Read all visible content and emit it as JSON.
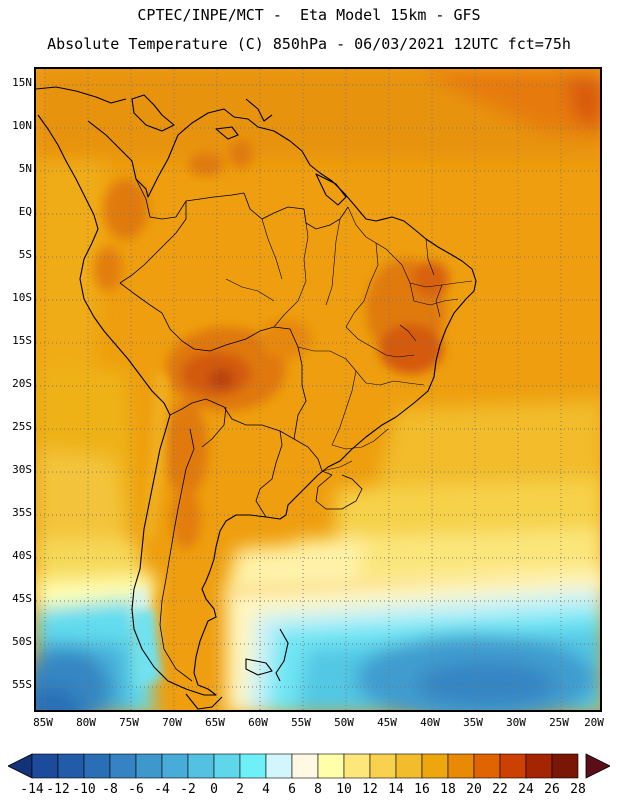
{
  "header": {
    "line1": "CPTEC/INPE/MCT -  Eta Model 15km - GFS",
    "line2": "Absolute Temperature (C) 850hPa - 06/03/2021 12UTC fct=75h"
  },
  "axes": {
    "lat_labels": [
      "15N",
      "10N",
      "5N",
      "EQ",
      "5S",
      "10S",
      "15S",
      "20S",
      "25S",
      "30S",
      "35S",
      "40S",
      "45S",
      "50S",
      "55S"
    ],
    "lon_labels": [
      "85W",
      "80W",
      "75W",
      "70W",
      "65W",
      "60W",
      "55W",
      "50W",
      "45W",
      "40W",
      "35W",
      "30W",
      "25W",
      "20W"
    ]
  },
  "colorbar": {
    "labels": [
      "-14",
      "-12",
      "-10",
      "-8",
      "-6",
      "-4",
      "-2",
      "0",
      "2",
      "4",
      "6",
      "8",
      "10",
      "12",
      "14",
      "16",
      "18",
      "20",
      "22",
      "24",
      "26",
      "28"
    ],
    "colors": [
      "#1d4a9a",
      "#225ba8",
      "#2a6fb6",
      "#3583c2",
      "#3f98cc",
      "#47acd8",
      "#53c1e2",
      "#5fd6ea",
      "#6ff0f8",
      "#d2f6fb",
      "#fff8e2",
      "#ffffaa",
      "#fde67a",
      "#f8d24e",
      "#f2bc2c",
      "#eda60e",
      "#e88a04",
      "#e06402",
      "#cc4002",
      "#a52402",
      "#7a1606"
    ],
    "end_low_color": "#12337a",
    "end_high_color": "#5c0e18"
  }
}
